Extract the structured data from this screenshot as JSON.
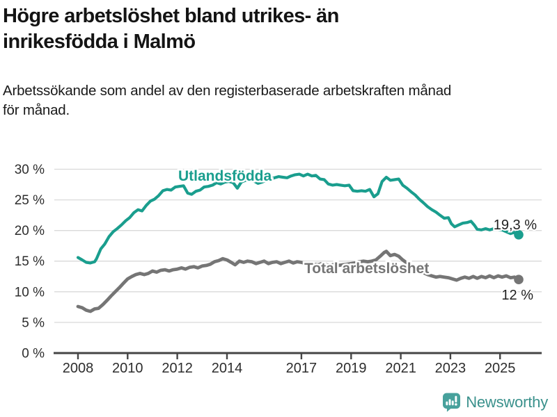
{
  "header": {
    "title": "Högre arbetslöshet bland utrikes- än\ninrikesfödda i Malmö",
    "subtitle": "Arbetssökande som andel av den registerbaserade arbetskraften månad\nför månad."
  },
  "footer": {
    "brand": "Newsworthy",
    "brand_color": "#3a918c",
    "logo_color": "#47a19c",
    "logo_icon": "bar-chart-speech-bubble-icon"
  },
  "chart_data": {
    "type": "line",
    "title": "Högre arbetslöshet bland utrikes- än inrikesfödda i Malmö",
    "subtitle": "Arbetssökande som andel av den registerbaserade arbetskraften månad för månad.",
    "xlabel": "",
    "ylabel": "",
    "grid": "horizontal",
    "legend_position": "inline-labels",
    "ylim": [
      0,
      30
    ],
    "xlim": [
      2007,
      2026.7
    ],
    "y_ticks": [
      0,
      5,
      10,
      15,
      20,
      25,
      30
    ],
    "y_tick_suffix": " %",
    "x_ticks": [
      2008,
      2010,
      2012,
      2014,
      2017,
      2019,
      2021,
      2023,
      2025
    ],
    "axis_color": "#454545",
    "grid_color": "#d9d9d9",
    "tick_label_color": "#2d2d2d",
    "annotation_color": "#1f1f1f",
    "series": [
      {
        "name": "Utlandsfödda",
        "color": "#1a9e8e",
        "end_label": "19,3 %",
        "end_value": 19.3,
        "points": [
          [
            2008.0,
            15.6
          ],
          [
            2008.17,
            15.2
          ],
          [
            2008.33,
            14.8
          ],
          [
            2008.5,
            14.7
          ],
          [
            2008.67,
            14.9
          ],
          [
            2008.75,
            15.4
          ],
          [
            2008.92,
            17.0
          ],
          [
            2009.08,
            17.8
          ],
          [
            2009.25,
            19.0
          ],
          [
            2009.42,
            19.8
          ],
          [
            2009.58,
            20.3
          ],
          [
            2009.75,
            20.9
          ],
          [
            2009.92,
            21.6
          ],
          [
            2010.08,
            22.1
          ],
          [
            2010.25,
            22.9
          ],
          [
            2010.42,
            23.4
          ],
          [
            2010.58,
            23.2
          ],
          [
            2010.75,
            24.1
          ],
          [
            2010.92,
            24.8
          ],
          [
            2011.08,
            25.1
          ],
          [
            2011.25,
            25.7
          ],
          [
            2011.42,
            26.5
          ],
          [
            2011.58,
            26.7
          ],
          [
            2011.75,
            26.6
          ],
          [
            2011.92,
            27.1
          ],
          [
            2012.08,
            27.2
          ],
          [
            2012.25,
            27.3
          ],
          [
            2012.42,
            26.1
          ],
          [
            2012.58,
            25.9
          ],
          [
            2012.75,
            26.4
          ],
          [
            2012.92,
            26.6
          ],
          [
            2013.08,
            27.1
          ],
          [
            2013.25,
            27.2
          ],
          [
            2013.42,
            27.4
          ],
          [
            2013.58,
            27.8
          ],
          [
            2013.75,
            27.6
          ],
          [
            2013.92,
            27.9
          ],
          [
            2014.08,
            28.0
          ],
          [
            2014.25,
            27.8
          ],
          [
            2014.42,
            26.9
          ],
          [
            2014.58,
            27.9
          ],
          [
            2014.75,
            28.2
          ],
          [
            2014.92,
            28.3
          ],
          [
            2015.08,
            28.1
          ],
          [
            2015.25,
            27.7
          ],
          [
            2015.42,
            27.9
          ],
          [
            2015.58,
            28.2
          ],
          [
            2015.75,
            28.4
          ],
          [
            2015.92,
            28.6
          ],
          [
            2016.08,
            28.8
          ],
          [
            2016.25,
            28.7
          ],
          [
            2016.42,
            28.6
          ],
          [
            2016.58,
            28.9
          ],
          [
            2016.75,
            29.1
          ],
          [
            2016.92,
            29.2
          ],
          [
            2017.08,
            28.9
          ],
          [
            2017.25,
            29.2
          ],
          [
            2017.42,
            28.9
          ],
          [
            2017.58,
            29.0
          ],
          [
            2017.75,
            28.4
          ],
          [
            2017.92,
            28.3
          ],
          [
            2018.08,
            27.6
          ],
          [
            2018.25,
            27.4
          ],
          [
            2018.42,
            27.5
          ],
          [
            2018.58,
            27.4
          ],
          [
            2018.75,
            27.3
          ],
          [
            2018.92,
            27.4
          ],
          [
            2019.08,
            26.5
          ],
          [
            2019.25,
            26.4
          ],
          [
            2019.42,
            26.5
          ],
          [
            2019.58,
            26.4
          ],
          [
            2019.75,
            26.7
          ],
          [
            2019.92,
            25.5
          ],
          [
            2020.08,
            26.0
          ],
          [
            2020.25,
            28.0
          ],
          [
            2020.42,
            28.7
          ],
          [
            2020.58,
            28.2
          ],
          [
            2020.75,
            28.3
          ],
          [
            2020.92,
            28.4
          ],
          [
            2021.08,
            27.4
          ],
          [
            2021.25,
            26.9
          ],
          [
            2021.42,
            26.3
          ],
          [
            2021.58,
            25.8
          ],
          [
            2021.75,
            25.1
          ],
          [
            2021.92,
            24.5
          ],
          [
            2022.08,
            23.9
          ],
          [
            2022.25,
            23.4
          ],
          [
            2022.42,
            23.0
          ],
          [
            2022.58,
            22.5
          ],
          [
            2022.75,
            22.0
          ],
          [
            2022.92,
            22.1
          ],
          [
            2023.04,
            21.1
          ],
          [
            2023.17,
            20.6
          ],
          [
            2023.33,
            20.9
          ],
          [
            2023.5,
            21.2
          ],
          [
            2023.67,
            21.3
          ],
          [
            2023.83,
            21.5
          ],
          [
            2023.96,
            20.9
          ],
          [
            2024.08,
            20.2
          ],
          [
            2024.25,
            20.1
          ],
          [
            2024.42,
            20.3
          ],
          [
            2024.58,
            20.1
          ],
          [
            2024.75,
            20.3
          ],
          [
            2024.92,
            20.2
          ],
          [
            2025.08,
            20.1
          ],
          [
            2025.25,
            19.8
          ],
          [
            2025.42,
            19.5
          ],
          [
            2025.58,
            19.7
          ],
          [
            2025.75,
            19.3
          ]
        ]
      },
      {
        "name": "Total arbetslöshet",
        "color": "#757575",
        "end_label": "12 %",
        "end_value": 12,
        "points": [
          [
            2008.0,
            7.6
          ],
          [
            2008.17,
            7.4
          ],
          [
            2008.33,
            7.0
          ],
          [
            2008.5,
            6.8
          ],
          [
            2008.67,
            7.2
          ],
          [
            2008.83,
            7.3
          ],
          [
            2009.0,
            7.9
          ],
          [
            2009.17,
            8.6
          ],
          [
            2009.33,
            9.3
          ],
          [
            2009.5,
            10.0
          ],
          [
            2009.67,
            10.7
          ],
          [
            2009.83,
            11.4
          ],
          [
            2010.0,
            12.1
          ],
          [
            2010.17,
            12.5
          ],
          [
            2010.33,
            12.8
          ],
          [
            2010.5,
            13.0
          ],
          [
            2010.67,
            12.8
          ],
          [
            2010.83,
            13.0
          ],
          [
            2011.0,
            13.4
          ],
          [
            2011.17,
            13.2
          ],
          [
            2011.33,
            13.5
          ],
          [
            2011.5,
            13.6
          ],
          [
            2011.67,
            13.4
          ],
          [
            2011.83,
            13.6
          ],
          [
            2012.0,
            13.7
          ],
          [
            2012.17,
            13.9
          ],
          [
            2012.33,
            13.7
          ],
          [
            2012.5,
            14.0
          ],
          [
            2012.67,
            14.1
          ],
          [
            2012.83,
            13.9
          ],
          [
            2013.0,
            14.2
          ],
          [
            2013.17,
            14.3
          ],
          [
            2013.33,
            14.5
          ],
          [
            2013.5,
            14.9
          ],
          [
            2013.67,
            15.1
          ],
          [
            2013.83,
            15.4
          ],
          [
            2014.0,
            15.2
          ],
          [
            2014.17,
            14.8
          ],
          [
            2014.33,
            14.4
          ],
          [
            2014.5,
            15.0
          ],
          [
            2014.67,
            14.8
          ],
          [
            2014.83,
            15.0
          ],
          [
            2015.0,
            14.9
          ],
          [
            2015.17,
            14.6
          ],
          [
            2015.33,
            14.8
          ],
          [
            2015.5,
            15.0
          ],
          [
            2015.67,
            14.6
          ],
          [
            2015.83,
            14.8
          ],
          [
            2016.0,
            14.9
          ],
          [
            2016.17,
            14.6
          ],
          [
            2016.33,
            14.8
          ],
          [
            2016.5,
            15.0
          ],
          [
            2016.67,
            14.7
          ],
          [
            2016.83,
            14.9
          ],
          [
            2017.0,
            14.8
          ],
          [
            2017.17,
            14.6
          ],
          [
            2017.33,
            14.7
          ],
          [
            2017.5,
            14.5
          ],
          [
            2017.67,
            14.4
          ],
          [
            2017.83,
            14.6
          ],
          [
            2018.0,
            14.4
          ],
          [
            2018.17,
            14.3
          ],
          [
            2018.33,
            14.5
          ],
          [
            2018.5,
            14.3
          ],
          [
            2018.67,
            14.4
          ],
          [
            2018.83,
            14.5
          ],
          [
            2019.0,
            14.6
          ],
          [
            2019.17,
            14.7
          ],
          [
            2019.33,
            14.9
          ],
          [
            2019.5,
            15.0
          ],
          [
            2019.67,
            14.9
          ],
          [
            2019.83,
            15.0
          ],
          [
            2020.0,
            15.2
          ],
          [
            2020.17,
            15.8
          ],
          [
            2020.33,
            16.4
          ],
          [
            2020.42,
            16.6
          ],
          [
            2020.58,
            15.9
          ],
          [
            2020.75,
            16.1
          ],
          [
            2020.92,
            15.8
          ],
          [
            2021.08,
            15.2
          ],
          [
            2021.25,
            14.7
          ],
          [
            2021.42,
            14.2
          ],
          [
            2021.58,
            13.8
          ],
          [
            2021.75,
            13.4
          ],
          [
            2021.92,
            13.1
          ],
          [
            2022.08,
            12.8
          ],
          [
            2022.25,
            12.6
          ],
          [
            2022.42,
            12.4
          ],
          [
            2022.58,
            12.5
          ],
          [
            2022.75,
            12.4
          ],
          [
            2022.92,
            12.3
          ],
          [
            2023.08,
            12.1
          ],
          [
            2023.25,
            11.9
          ],
          [
            2023.42,
            12.2
          ],
          [
            2023.58,
            12.4
          ],
          [
            2023.75,
            12.2
          ],
          [
            2023.92,
            12.5
          ],
          [
            2024.08,
            12.2
          ],
          [
            2024.25,
            12.5
          ],
          [
            2024.42,
            12.3
          ],
          [
            2024.58,
            12.6
          ],
          [
            2024.75,
            12.3
          ],
          [
            2024.92,
            12.6
          ],
          [
            2025.08,
            12.4
          ],
          [
            2025.25,
            12.6
          ],
          [
            2025.42,
            12.3
          ],
          [
            2025.58,
            12.4
          ],
          [
            2025.75,
            12.0
          ]
        ]
      }
    ]
  }
}
